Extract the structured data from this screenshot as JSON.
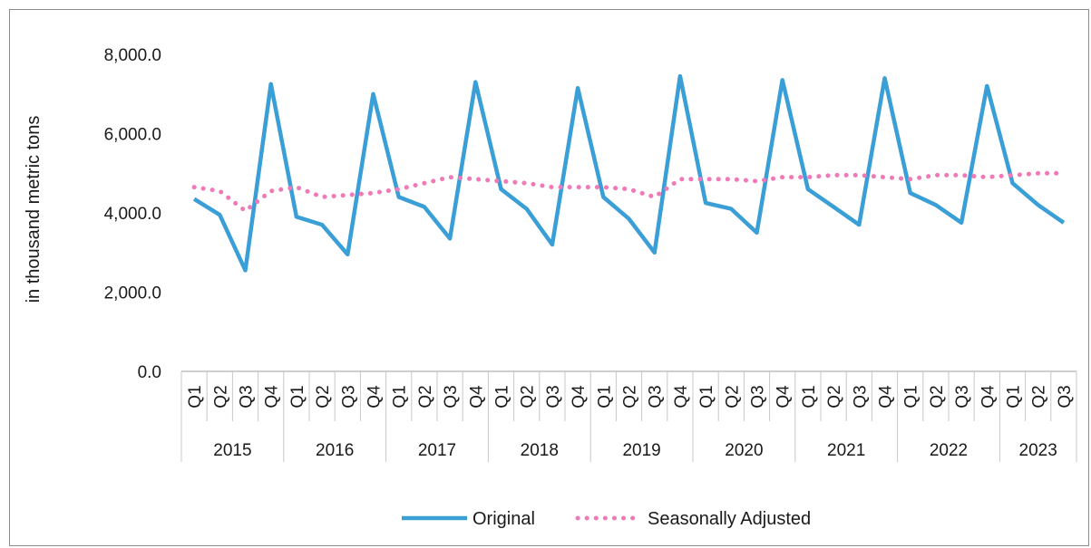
{
  "chart_data": {
    "type": "line",
    "title": "",
    "xlabel": "",
    "ylabel": "in thousand metric tons",
    "ylim": [
      0,
      8000
    ],
    "y_ticks": [
      "0.0",
      "2,000.0",
      "4,000.0",
      "6,000.0",
      "8,000.0"
    ],
    "y_tick_values": [
      0,
      2000,
      4000,
      6000,
      8000
    ],
    "grid": false,
    "legend_position": "bottom",
    "categories": [
      "Q1",
      "Q2",
      "Q3",
      "Q4",
      "Q1",
      "Q2",
      "Q3",
      "Q4",
      "Q1",
      "Q2",
      "Q3",
      "Q4",
      "Q1",
      "Q2",
      "Q3",
      "Q4",
      "Q1",
      "Q2",
      "Q3",
      "Q4",
      "Q1",
      "Q2",
      "Q3",
      "Q4",
      "Q1",
      "Q2",
      "Q3",
      "Q4",
      "Q1",
      "Q2",
      "Q3",
      "Q4",
      "Q1",
      "Q2",
      "Q3"
    ],
    "year_groups": [
      {
        "label": "2015",
        "count": 4
      },
      {
        "label": "2016",
        "count": 4
      },
      {
        "label": "2017",
        "count": 4
      },
      {
        "label": "2018",
        "count": 4
      },
      {
        "label": "2019",
        "count": 4
      },
      {
        "label": "2020",
        "count": 4
      },
      {
        "label": "2021",
        "count": 4
      },
      {
        "label": "2022",
        "count": 4
      },
      {
        "label": "2023",
        "count": 3
      }
    ],
    "series": [
      {
        "name": "Original",
        "color": "#3a9fd6",
        "style": "solid",
        "values": [
          4350,
          3950,
          2550,
          7250,
          3900,
          3700,
          2950,
          7000,
          4400,
          4150,
          3350,
          7300,
          4600,
          4100,
          3200,
          7150,
          4400,
          3850,
          3000,
          7450,
          4250,
          4100,
          3500,
          7350,
          4600,
          4150,
          3700,
          7400,
          4500,
          4200,
          3750,
          7200,
          4750,
          4200,
          3750
        ]
      },
      {
        "name": "Seasonally Adjusted",
        "color": "#f07ab8",
        "style": "dotted",
        "values": [
          4650,
          4550,
          4050,
          4550,
          4650,
          4400,
          4450,
          4500,
          4600,
          4750,
          4900,
          4850,
          4800,
          4750,
          4650,
          4650,
          4650,
          4600,
          4400,
          4850,
          4850,
          4850,
          4800,
          4900,
          4900,
          4950,
          4950,
          4900,
          4850,
          4950,
          4950,
          4900,
          4950,
          5000,
          5000
        ]
      }
    ]
  }
}
